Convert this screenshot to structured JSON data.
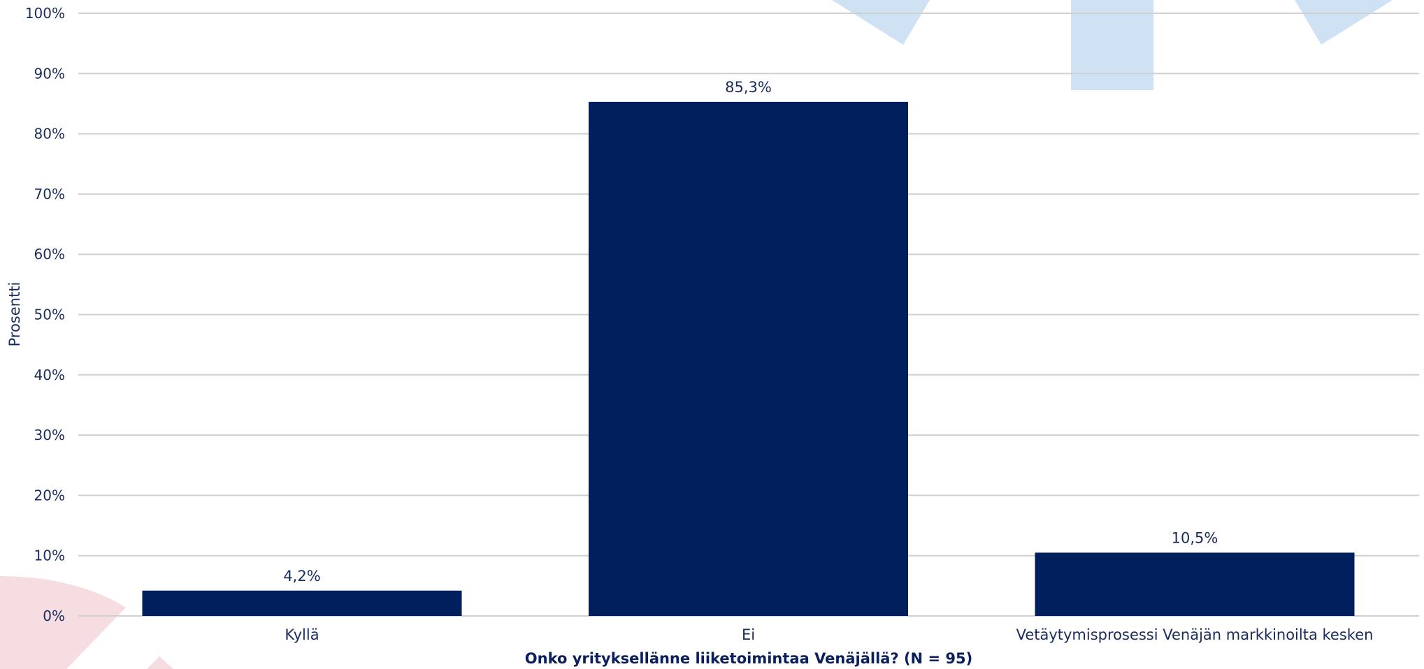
{
  "chart_data": {
    "type": "bar",
    "categories": [
      "Kyllä",
      "Ei",
      "Vetäytymisprosessi Venäjän markkinoilta kesken"
    ],
    "values": [
      4.2,
      85.3,
      10.5
    ],
    "data_labels": [
      "4,2%",
      "85,3%",
      "10,5%"
    ],
    "ylabel": "Prosentti",
    "xlabel": "Onko yrityksellänne liiketoimintaa Venäjällä? (N = 95)",
    "ylim": [
      0,
      100
    ],
    "yticks": [
      "0%",
      "10%",
      "20%",
      "30%",
      "40%",
      "50%",
      "60%",
      "70%",
      "80%",
      "90%",
      "100%"
    ],
    "grid": true,
    "legend": "none",
    "colors": {
      "bar": "#001f5c",
      "gridline": "#d0d0d0",
      "text": "#1a2b5e",
      "decor_blue": "#cfe2f3",
      "decor_pink": "#f5dde2"
    }
  }
}
